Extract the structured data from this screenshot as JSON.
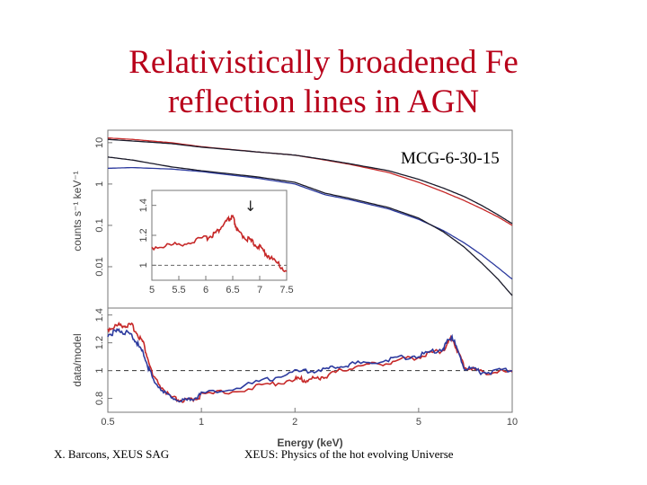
{
  "slide": {
    "title_line1": "Relativistically broadened Fe",
    "title_line2": "reflection lines in AGN",
    "target_label": "MCG-6-30-15",
    "footer_left": "X. Barcons, XEUS SAG",
    "footer_right": "XEUS: Physics of the hot evolving Universe"
  },
  "colors": {
    "title": "#b8001a",
    "series_red": "#c62828",
    "series_blue": "#2c3a9e",
    "series_dark": "#1a1a2a"
  },
  "chart_data": [
    {
      "type": "line",
      "panel": "top",
      "xscale": "log",
      "yscale": "log",
      "xlim": [
        0.5,
        10
      ],
      "ylim": [
        0.001,
        20
      ],
      "ylabel": "counts s⁻¹ keV⁻¹",
      "yticks": [
        "0.01",
        "0.1",
        "1",
        "10"
      ],
      "series": [
        {
          "name": "red upper",
          "color": "red",
          "x": [
            0.5,
            0.6,
            0.8,
            1,
            1.5,
            2,
            2.5,
            3,
            4,
            5,
            6,
            7,
            8,
            9,
            10
          ],
          "y": [
            13,
            12,
            10,
            8,
            6,
            5,
            3.8,
            3,
            1.9,
            1.1,
            0.65,
            0.4,
            0.25,
            0.16,
            0.1
          ]
        },
        {
          "name": "dark upper",
          "color": "dark",
          "x": [
            0.5,
            0.6,
            0.8,
            1,
            1.5,
            2,
            2.5,
            3,
            4,
            5,
            6,
            7,
            8,
            9,
            10
          ],
          "y": [
            12,
            11,
            9.5,
            7.8,
            6,
            5,
            3.9,
            3.1,
            2.1,
            1.3,
            0.8,
            0.5,
            0.3,
            0.18,
            0.11
          ]
        },
        {
          "name": "blue lower",
          "color": "blue",
          "x": [
            0.5,
            0.6,
            0.8,
            1,
            1.5,
            2,
            2.5,
            3,
            4,
            5,
            6,
            7,
            8,
            9,
            10
          ],
          "y": [
            2.4,
            2.5,
            2.3,
            2.0,
            1.4,
            1.0,
            0.55,
            0.42,
            0.25,
            0.14,
            0.075,
            0.038,
            0.019,
            0.0095,
            0.005
          ]
        },
        {
          "name": "dark lower",
          "color": "dark",
          "x": [
            0.5,
            0.6,
            0.8,
            1,
            1.5,
            2,
            2.5,
            3,
            4,
            5,
            6,
            7,
            8,
            9,
            10
          ],
          "y": [
            4.5,
            3.8,
            2.6,
            2.1,
            1.5,
            1.1,
            0.6,
            0.45,
            0.27,
            0.15,
            0.07,
            0.03,
            0.012,
            0.005,
            0.002
          ]
        }
      ]
    },
    {
      "type": "line",
      "panel": "inset",
      "xlim": [
        5,
        7.5
      ],
      "ylim": [
        0.9,
        1.5
      ],
      "xticks": [
        "5",
        "5.5",
        "6",
        "6.5",
        "7",
        "7.5"
      ],
      "yticks": [
        "1",
        "1.2",
        "1.4"
      ],
      "annotation": "↓",
      "series": [
        {
          "name": "line profile",
          "color": "red",
          "x": [
            5,
            5.5,
            6,
            6.2,
            6.4,
            6.5,
            6.6,
            6.8,
            7,
            7.2,
            7.5
          ],
          "y": [
            1.12,
            1.14,
            1.18,
            1.22,
            1.3,
            1.32,
            1.22,
            1.17,
            1.12,
            1.05,
            0.96
          ]
        }
      ]
    },
    {
      "type": "line",
      "panel": "bottom",
      "xscale": "log",
      "xlim": [
        0.5,
        10
      ],
      "ylim": [
        0.7,
        1.45
      ],
      "xlabel": "Energy (keV)",
      "ylabel": "data/model",
      "xticks": [
        "0.5",
        "1",
        "2",
        "5",
        "10"
      ],
      "yticks": [
        "0.8",
        "1",
        "1.2",
        "1.4"
      ],
      "reference_line": 1,
      "series": [
        {
          "name": "red ratio",
          "color": "red",
          "x": [
            0.5,
            0.55,
            0.6,
            0.65,
            0.7,
            0.8,
            0.9,
            1,
            1.5,
            2,
            2.2,
            2.5,
            3,
            4,
            5,
            6,
            6.4,
            7,
            8,
            10
          ],
          "y": [
            1.3,
            1.33,
            1.32,
            1.2,
            0.95,
            0.8,
            0.78,
            0.82,
            0.88,
            0.94,
            0.93,
            0.96,
            1.02,
            1.06,
            1.1,
            1.15,
            1.24,
            1.03,
            0.99,
            0.99
          ]
        },
        {
          "name": "blue ratio",
          "color": "blue",
          "x": [
            0.5,
            0.55,
            0.6,
            0.65,
            0.7,
            0.8,
            0.9,
            1,
            1.5,
            2,
            2.5,
            3,
            4,
            5,
            6,
            6.4,
            7,
            8,
            10
          ],
          "y": [
            1.26,
            1.29,
            1.25,
            1.12,
            0.93,
            0.8,
            0.78,
            0.83,
            0.91,
            0.99,
            1.01,
            1.04,
            1.08,
            1.11,
            1.16,
            1.25,
            1.02,
            0.99,
            1.0
          ]
        }
      ]
    }
  ]
}
